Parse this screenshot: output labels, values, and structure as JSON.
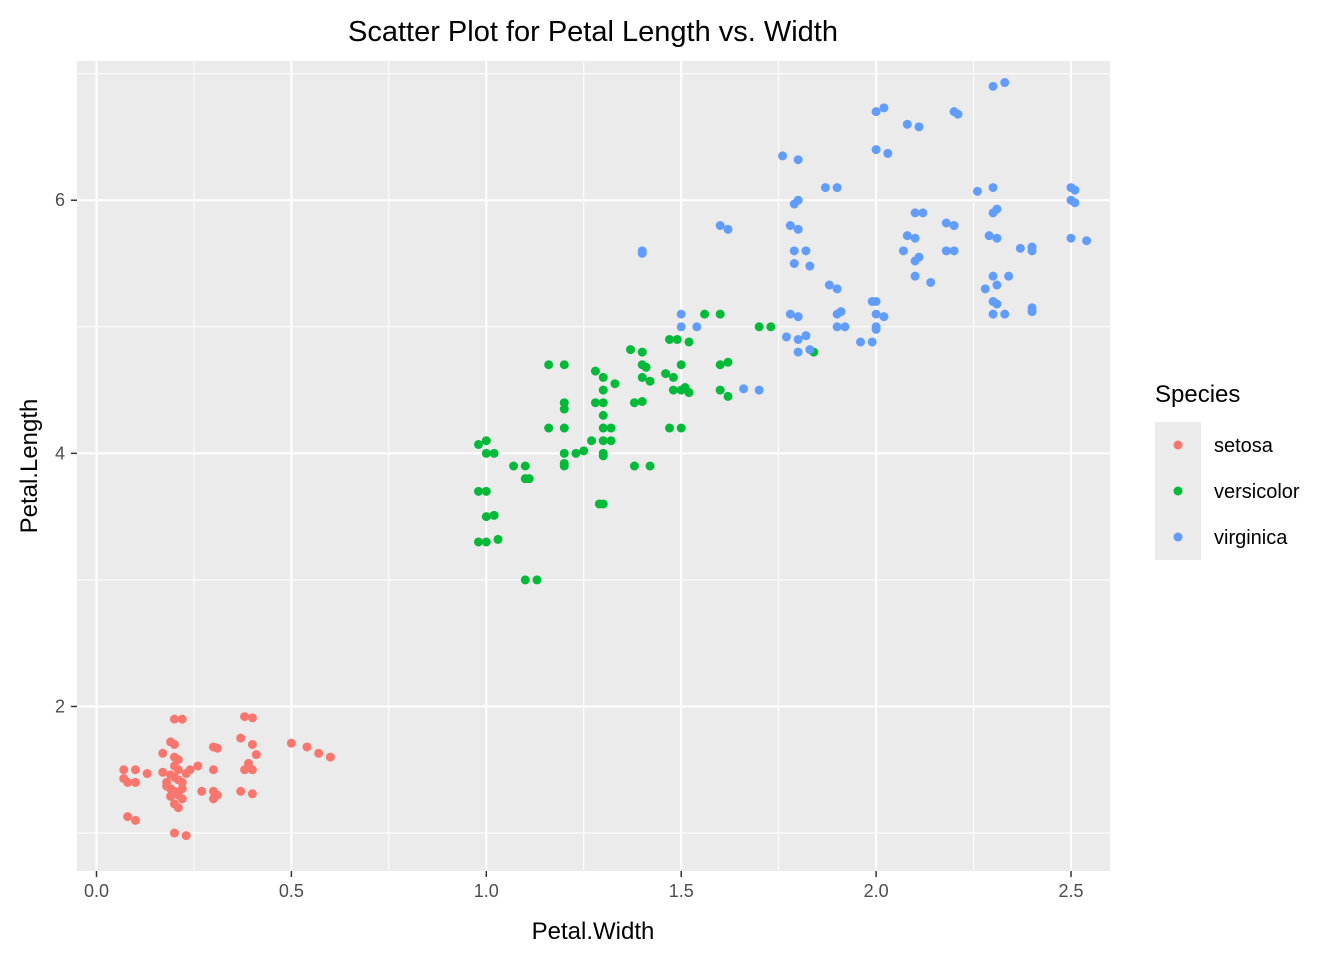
{
  "chart_data": {
    "type": "scatter",
    "title": "Scatter Plot for Petal Length vs. Width",
    "xlabel": "Petal.Width",
    "ylabel": "Petal.Length",
    "xlim": [
      -0.05,
      2.6
    ],
    "ylim": [
      0.7,
      7.1
    ],
    "x_ticks": [
      0.0,
      0.5,
      1.0,
      1.5,
      2.0,
      2.5
    ],
    "x_tick_labels": [
      "0.0",
      "0.5",
      "1.0",
      "1.5",
      "2.0",
      "2.5"
    ],
    "y_ticks": [
      2,
      4,
      6
    ],
    "y_tick_labels": [
      "2",
      "4",
      "6"
    ],
    "x_minor_ticks": [
      0.25,
      0.75,
      1.25,
      1.75,
      2.25
    ],
    "y_minor_ticks": [
      1,
      3,
      5,
      7
    ],
    "grid": true,
    "background": "#ebebeb",
    "legend": {
      "title": "Species",
      "placement": "right"
    },
    "series": [
      {
        "name": "setosa",
        "color": "#f8766d",
        "points": [
          [
            0.07,
            1.5
          ],
          [
            0.1,
            1.5
          ],
          [
            0.07,
            1.43
          ],
          [
            0.1,
            1.4
          ],
          [
            0.08,
            1.4
          ],
          [
            0.13,
            1.47
          ],
          [
            0.08,
            1.13
          ],
          [
            0.1,
            1.1
          ],
          [
            0.17,
            1.63
          ],
          [
            0.17,
            1.48
          ],
          [
            0.18,
            1.4
          ],
          [
            0.19,
            1.35
          ],
          [
            0.2,
            1.9
          ],
          [
            0.22,
            1.9
          ],
          [
            0.19,
            1.72
          ],
          [
            0.2,
            1.7
          ],
          [
            0.2,
            1.6
          ],
          [
            0.21,
            1.58
          ],
          [
            0.2,
            1.53
          ],
          [
            0.21,
            1.5
          ],
          [
            0.19,
            1.46
          ],
          [
            0.2,
            1.44
          ],
          [
            0.21,
            1.42
          ],
          [
            0.22,
            1.4
          ],
          [
            0.18,
            1.37
          ],
          [
            0.22,
            1.35
          ],
          [
            0.2,
            1.33
          ],
          [
            0.21,
            1.3
          ],
          [
            0.19,
            1.29
          ],
          [
            0.22,
            1.27
          ],
          [
            0.2,
            1.23
          ],
          [
            0.21,
            1.2
          ],
          [
            0.2,
            1.0
          ],
          [
            0.23,
            0.98
          ],
          [
            0.23,
            1.47
          ],
          [
            0.24,
            1.5
          ],
          [
            0.26,
            1.53
          ],
          [
            0.27,
            1.33
          ],
          [
            0.3,
            1.68
          ],
          [
            0.31,
            1.67
          ],
          [
            0.3,
            1.5
          ],
          [
            0.3,
            1.33
          ],
          [
            0.31,
            1.3
          ],
          [
            0.3,
            1.27
          ],
          [
            0.38,
            1.92
          ],
          [
            0.4,
            1.91
          ],
          [
            0.37,
            1.75
          ],
          [
            0.4,
            1.7
          ],
          [
            0.41,
            1.62
          ],
          [
            0.39,
            1.55
          ],
          [
            0.38,
            1.5
          ],
          [
            0.4,
            1.5
          ],
          [
            0.37,
            1.33
          ],
          [
            0.4,
            1.31
          ],
          [
            0.5,
            1.71
          ],
          [
            0.54,
            1.68
          ],
          [
            0.57,
            1.63
          ],
          [
            0.6,
            1.6
          ]
        ]
      },
      {
        "name": "versicolor",
        "color": "#00ba38",
        "points": [
          [
            0.98,
            4.07
          ],
          [
            1.0,
            4.1
          ],
          [
            1.0,
            4.0
          ],
          [
            1.02,
            4.0
          ],
          [
            0.98,
            3.7
          ],
          [
            1.0,
            3.7
          ],
          [
            0.98,
            3.3
          ],
          [
            1.0,
            3.3
          ],
          [
            1.03,
            3.32
          ],
          [
            1.0,
            3.5
          ],
          [
            1.02,
            3.51
          ],
          [
            1.07,
            3.9
          ],
          [
            1.1,
            3.9
          ],
          [
            1.1,
            3.8
          ],
          [
            1.11,
            3.8
          ],
          [
            1.1,
            3.0
          ],
          [
            1.13,
            3.0
          ],
          [
            1.16,
            4.7
          ],
          [
            1.2,
            4.7
          ],
          [
            1.16,
            4.2
          ],
          [
            1.2,
            4.2
          ],
          [
            1.2,
            4.4
          ],
          [
            1.2,
            4.35
          ],
          [
            1.2,
            4.0
          ],
          [
            1.2,
            3.9
          ],
          [
            1.2,
            3.92
          ],
          [
            1.23,
            4.0
          ],
          [
            1.25,
            4.02
          ],
          [
            1.27,
            4.1
          ],
          [
            1.28,
            4.65
          ],
          [
            1.3,
            4.6
          ],
          [
            1.3,
            4.5
          ],
          [
            1.33,
            4.55
          ],
          [
            1.3,
            4.4
          ],
          [
            1.28,
            4.4
          ],
          [
            1.3,
            4.3
          ],
          [
            1.3,
            4.2
          ],
          [
            1.32,
            4.2
          ],
          [
            1.3,
            4.1
          ],
          [
            1.32,
            4.1
          ],
          [
            1.3,
            4.0
          ],
          [
            1.3,
            3.98
          ],
          [
            1.29,
            3.6
          ],
          [
            1.3,
            3.6
          ],
          [
            1.37,
            4.82
          ],
          [
            1.4,
            4.8
          ],
          [
            1.4,
            4.7
          ],
          [
            1.41,
            4.68
          ],
          [
            1.4,
            4.6
          ],
          [
            1.42,
            4.57
          ],
          [
            1.38,
            4.4
          ],
          [
            1.4,
            4.41
          ],
          [
            1.38,
            3.9
          ],
          [
            1.42,
            3.9
          ],
          [
            1.47,
            4.9
          ],
          [
            1.49,
            4.9
          ],
          [
            1.46,
            4.63
          ],
          [
            1.48,
            4.6
          ],
          [
            1.5,
            4.7
          ],
          [
            1.52,
            4.88
          ],
          [
            1.48,
            4.5
          ],
          [
            1.5,
            4.5
          ],
          [
            1.51,
            4.52
          ],
          [
            1.52,
            4.48
          ],
          [
            1.47,
            4.2
          ],
          [
            1.5,
            4.2
          ],
          [
            1.56,
            5.1
          ],
          [
            1.6,
            5.1
          ],
          [
            1.6,
            4.7
          ],
          [
            1.62,
            4.72
          ],
          [
            1.6,
            4.5
          ],
          [
            1.62,
            4.45
          ],
          [
            1.7,
            5.0
          ],
          [
            1.73,
            5.0
          ],
          [
            1.84,
            4.8
          ]
        ]
      },
      {
        "name": "virginica",
        "color": "#619cff",
        "points": [
          [
            1.4,
            5.6
          ],
          [
            1.4,
            5.58
          ],
          [
            1.5,
            5.1
          ],
          [
            1.5,
            5.0
          ],
          [
            1.54,
            5.0
          ],
          [
            1.6,
            5.8
          ],
          [
            1.62,
            5.77
          ],
          [
            1.66,
            4.51
          ],
          [
            1.7,
            4.5
          ],
          [
            1.76,
            6.35
          ],
          [
            1.8,
            6.32
          ],
          [
            1.8,
            6.0
          ],
          [
            1.79,
            5.97
          ],
          [
            1.78,
            5.8
          ],
          [
            1.8,
            5.77
          ],
          [
            1.79,
            5.6
          ],
          [
            1.82,
            5.6
          ],
          [
            1.79,
            5.5
          ],
          [
            1.83,
            5.48
          ],
          [
            1.78,
            5.1
          ],
          [
            1.8,
            5.08
          ],
          [
            1.77,
            4.92
          ],
          [
            1.8,
            4.9
          ],
          [
            1.82,
            4.93
          ],
          [
            1.8,
            4.8
          ],
          [
            1.83,
            4.82
          ],
          [
            1.87,
            6.1
          ],
          [
            1.9,
            6.1
          ],
          [
            1.88,
            5.33
          ],
          [
            1.9,
            5.3
          ],
          [
            1.9,
            5.1
          ],
          [
            1.91,
            5.12
          ],
          [
            1.9,
            5.0
          ],
          [
            1.92,
            5.0
          ],
          [
            1.96,
            4.88
          ],
          [
            1.99,
            5.2
          ],
          [
            2.0,
            5.2
          ],
          [
            2.0,
            5.1
          ],
          [
            2.02,
            5.08
          ],
          [
            2.0,
            5.0
          ],
          [
            2.0,
            4.98
          ],
          [
            1.99,
            4.88
          ],
          [
            2.0,
            6.7
          ],
          [
            2.02,
            6.73
          ],
          [
            2.0,
            6.4
          ],
          [
            2.03,
            6.37
          ],
          [
            2.08,
            6.6
          ],
          [
            2.11,
            6.58
          ],
          [
            2.07,
            5.6
          ],
          [
            2.1,
            5.7
          ],
          [
            2.08,
            5.72
          ],
          [
            2.1,
            5.9
          ],
          [
            2.12,
            5.9
          ],
          [
            2.1,
            5.52
          ],
          [
            2.11,
            5.55
          ],
          [
            2.1,
            5.4
          ],
          [
            2.14,
            5.35
          ],
          [
            2.18,
            5.82
          ],
          [
            2.2,
            5.8
          ],
          [
            2.18,
            5.6
          ],
          [
            2.2,
            5.6
          ],
          [
            2.2,
            6.7
          ],
          [
            2.21,
            6.68
          ],
          [
            2.26,
            6.07
          ],
          [
            2.3,
            6.1
          ],
          [
            2.3,
            5.9
          ],
          [
            2.31,
            5.93
          ],
          [
            2.29,
            5.72
          ],
          [
            2.31,
            5.7
          ],
          [
            2.28,
            5.3
          ],
          [
            2.31,
            5.33
          ],
          [
            2.3,
            5.4
          ],
          [
            2.34,
            5.4
          ],
          [
            2.3,
            5.2
          ],
          [
            2.31,
            5.18
          ],
          [
            2.3,
            5.1
          ],
          [
            2.33,
            5.1
          ],
          [
            2.3,
            6.9
          ],
          [
            2.33,
            6.93
          ],
          [
            2.37,
            5.62
          ],
          [
            2.4,
            5.6
          ],
          [
            2.4,
            5.63
          ],
          [
            2.4,
            5.15
          ],
          [
            2.4,
            5.12
          ],
          [
            2.5,
            6.1
          ],
          [
            2.51,
            6.08
          ],
          [
            2.5,
            6.0
          ],
          [
            2.51,
            5.98
          ],
          [
            2.5,
            5.7
          ],
          [
            2.54,
            5.68
          ]
        ]
      }
    ]
  }
}
